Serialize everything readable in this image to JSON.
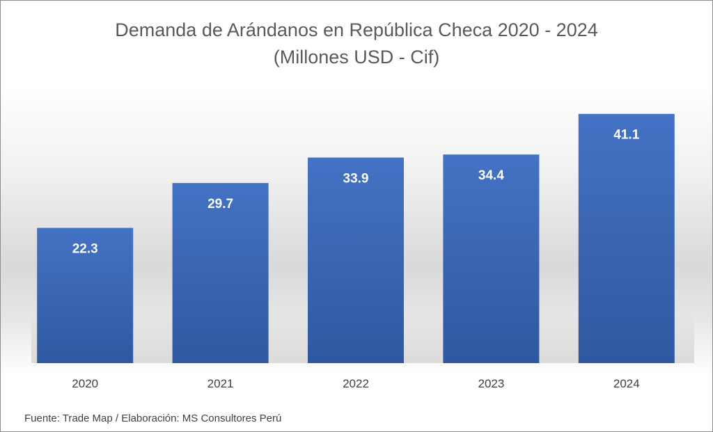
{
  "chart_data": {
    "type": "bar",
    "title": "Demanda de Arándanos en República Checa 2020 - 2024",
    "subtitle": "(Millones USD - Cif)",
    "categories": [
      "2020",
      "2021",
      "2022",
      "2023",
      "2024"
    ],
    "values": [
      22.3,
      29.7,
      33.9,
      34.4,
      41.1
    ],
    "value_labels": [
      "22.3",
      "29.7",
      "33.9",
      "34.4",
      "41.1"
    ],
    "xlabel": "",
    "ylabel": "",
    "ylim": [
      0,
      46
    ],
    "grid": false,
    "legend": "none",
    "colors": {
      "bar_top": "#4472c4",
      "bar_bottom": "#2f58a0",
      "value_label": "#ffffff",
      "tick_label": "#404040",
      "title": "#595959"
    }
  },
  "footer": {
    "source": "Fuente: Trade Map / Elaboración: MS Consultores Perú"
  }
}
